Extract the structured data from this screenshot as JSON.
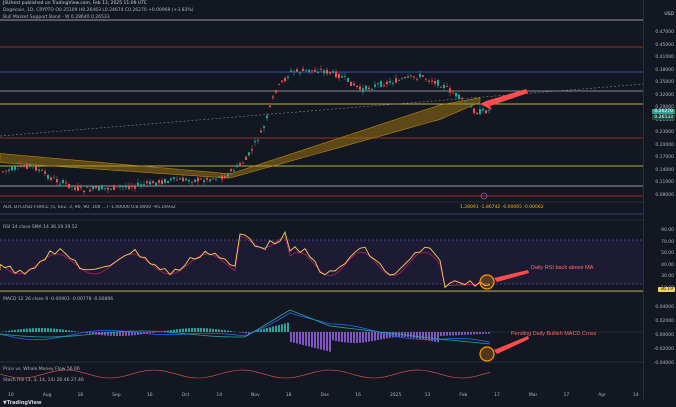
{
  "header": {
    "publisher": "JSUhest published on TradingView.com, Feb 13, 2025 11:09 UTC",
    "symbol_line": "Dogecoin, 1D, CRYPTO  O0.25109 H0.26463 L0.24674 C0.26270 +0.00969 (+3.83%)",
    "indicator_line": "Bull Market Support Band - W  0.28640  0.26533",
    "currency": "USD"
  },
  "price_axis": [
    "0.47000",
    "0.45000",
    "0.41000",
    "0.38000",
    "0.35000",
    "0.32000",
    "0.29000",
    "0.26000",
    "0.23000",
    "0.20000",
    "0.17000",
    "0.14000",
    "0.11000",
    "0.08000"
  ],
  "price_badges": [
    {
      "label": "0.26270",
      "color": "#26a69a"
    },
    {
      "label": "0.26533",
      "color": "#1f4b43"
    }
  ],
  "rsi": {
    "legend": "RSI 14 close SMA 14  36.19  39.52",
    "axis": [
      "90.00",
      "70.00",
      "50.00",
      "40.00",
      "30.00",
      "10.00"
    ],
    "badge": "36.19"
  },
  "macd": {
    "legend": "MACD 12 26 close 9  -0.00903  -0.00778  -0.00896",
    "axis": [
      "0.04000",
      "0.02000",
      "0.00000",
      "-0.02000",
      "-0.04000"
    ]
  },
  "top_strip": {
    "legend": "ADC BTCUSD FORCE (5, 6x2, 3, 90, 90, 100 ...)  -1.00000  0.8.0000  -95.16932",
    "values": "1.28091  -1.86742  -0.00065  -0.00062"
  },
  "lower_legends": [
    "Price vs. Whale Money Flow  56.06",
    "Stoch RSI (3, 3, 14, 14)  26.46  27.46"
  ],
  "annotations": {
    "rsi_note": "Daily RSI back above MA",
    "macd_note": "Pending Daily Bullish MACD Cross"
  },
  "time_axis": [
    "10",
    "Aug",
    "18",
    "Sep",
    "16",
    "Oct",
    "14",
    "Nov",
    "18",
    "Dec",
    "16",
    "2025",
    "13",
    "Feb",
    "17",
    "Mar",
    "17",
    "Apr",
    "14"
  ],
  "footer_logo": "TradingView",
  "colors": {
    "background": "#131722",
    "up": "#26a69a",
    "down": "#ef5350",
    "band": "#b8860b",
    "rsi": "#f4d35e",
    "arrow": "#ff4d4d"
  }
}
